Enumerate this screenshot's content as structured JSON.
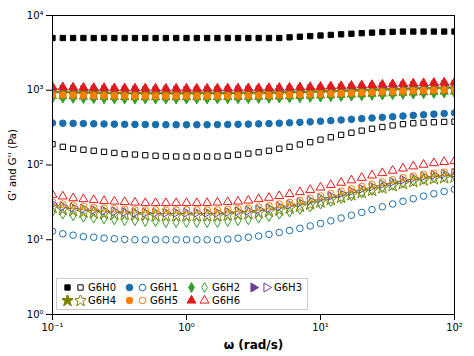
{
  "chart_data": {
    "type": "scatter",
    "xlabel": "ω (rad/s)",
    "ylabel": "G' and G'' (Pa)",
    "log": true,
    "xlim": [
      0.1,
      100
    ],
    "ylim": [
      1,
      10000
    ],
    "xticks": [
      {
        "value": 0.1,
        "label": "10⁻¹"
      },
      {
        "value": 1,
        "label": "10⁰"
      },
      {
        "value": 10,
        "label": "10¹"
      },
      {
        "value": 100,
        "label": "10²"
      }
    ],
    "yticks": [
      {
        "value": 1,
        "label": "10⁰"
      },
      {
        "value": 10,
        "label": "10¹"
      },
      {
        "value": 100,
        "label": "10²"
      },
      {
        "value": 1000,
        "label": "10³"
      },
      {
        "value": 10000,
        "label": "10⁴"
      }
    ],
    "legend": "lower left",
    "x": [
      0.1,
      0.1193777,
      0.1425103,
      0.1701254,
      0.2030918,
      0.2424462,
      0.2894266,
      0.3455107,
      0.4124626,
      0.4923883,
      0.5878016,
      0.7017038,
      0.8376776,
      1,
      1.193777,
      1.425103,
      1.701254,
      2.030918,
      2.424462,
      2.894266,
      3.455107,
      4.124626,
      4.923883,
      5.878016,
      7.017038,
      8.376776,
      10,
      11.93777,
      14.25103,
      17.01254,
      20.30918,
      24.24462,
      28.94266,
      34.55107,
      41.24626,
      49.23883,
      58.78016,
      70.17038,
      83.76776,
      100
    ],
    "series": [
      {
        "name": "G6H0",
        "color": "black",
        "marker": "square",
        "values": [
          5000,
          5000,
          5000,
          5000,
          5000,
          5000,
          5000,
          5000,
          5000,
          5000,
          5000,
          5000,
          5000,
          5000,
          5000,
          5000,
          5000,
          5000,
          5000,
          5000,
          5000,
          5000,
          5000,
          5100,
          5200,
          5300,
          5400,
          5500,
          5600,
          5700,
          5800,
          5900,
          6000,
          6050,
          6100,
          6100,
          6100,
          6100,
          6100,
          6100
        ]
      },
      {
        "name": "G6H0",
        "color": "black",
        "marker": "square-open",
        "values": [
          190,
          175,
          165,
          160,
          155,
          150,
          145,
          140,
          138,
          135,
          133,
          131,
          130,
          130,
          130,
          130,
          130,
          133,
          137,
          142,
          148,
          155,
          165,
          175,
          188,
          202,
          218,
          235,
          253,
          270,
          288,
          305,
          322,
          338,
          352,
          362,
          368,
          373,
          377,
          380
        ]
      },
      {
        "name": "G6H1",
        "color": "#1a6faf",
        "marker": "circle",
        "values": [
          365,
          362,
          360,
          358,
          356,
          354,
          352,
          350,
          349,
          348,
          347,
          346,
          346,
          346,
          346,
          346,
          347,
          348,
          350,
          352,
          355,
          358,
          362,
          367,
          372,
          378,
          385,
          392,
          400,
          408,
          417,
          425,
          434,
          443,
          452,
          461,
          470,
          479,
          488,
          497
        ]
      },
      {
        "name": "G6H1",
        "color": "#1a6faf",
        "marker": "circle-open",
        "values": [
          13,
          12,
          11.5,
          11,
          10.8,
          10.5,
          10.3,
          10.1,
          10,
          10,
          10,
          10,
          10,
          10,
          10,
          10,
          10,
          10.2,
          10.5,
          10.8,
          11.2,
          11.8,
          12.5,
          13.3,
          14.2,
          15.3,
          16.5,
          17.9,
          19.5,
          21.3,
          23.2,
          25.3,
          27.6,
          30.1,
          32.7,
          35.4,
          38.3,
          41.2,
          44.2,
          47.2
        ]
      },
      {
        "name": "G6H2",
        "color": "#33a02c",
        "marker": "diamond",
        "values": [
          790,
          785,
          780,
          775,
          772,
          769,
          767,
          765,
          764,
          763,
          762,
          762,
          762,
          762,
          763,
          764,
          765,
          767,
          769,
          772,
          776,
          780,
          785,
          790,
          796,
          803,
          810,
          818,
          826,
          835,
          844,
          853,
          863,
          873,
          882,
          891,
          900,
          908,
          916,
          924
        ]
      },
      {
        "name": "G6H2",
        "color": "#33a02c",
        "marker": "diamond-open",
        "values": [
          24,
          22,
          21,
          20,
          19.5,
          19,
          18.5,
          18,
          18,
          17.5,
          17.5,
          17,
          17,
          17,
          17,
          17,
          17,
          17.5,
          18,
          18.5,
          19.5,
          20.5,
          22,
          23.5,
          25.5,
          27.5,
          30,
          32.5,
          35.5,
          38.5,
          42,
          45.5,
          49.5,
          53.5,
          57.5,
          61,
          64.5,
          67.5,
          70,
          72
        ]
      },
      {
        "name": "G6H3",
        "color": "#6a3d9a",
        "marker": "triangle_right",
        "values": [
          1030,
          1022,
          1015,
          1009,
          1004,
          1000,
          997,
          994,
          992,
          990,
          989,
          988,
          988,
          988,
          988,
          989,
          990,
          992,
          994,
          997,
          1001,
          1006,
          1011,
          1017,
          1024,
          1032,
          1041,
          1050,
          1060,
          1071,
          1082,
          1094,
          1106,
          1118,
          1130,
          1142,
          1154,
          1165,
          1176,
          1186
        ]
      },
      {
        "name": "G6H3",
        "color": "#6a3d9a",
        "marker": "triangle_right-open",
        "values": [
          30,
          28,
          27,
          26,
          25,
          24.5,
          24,
          23.5,
          23,
          23,
          23,
          23,
          23,
          23,
          23,
          23,
          23,
          23.5,
          24,
          24.5,
          25.5,
          26.5,
          28,
          29.5,
          31.5,
          33.5,
          36,
          38.5,
          41.5,
          44.5,
          48,
          51.5,
          55.5,
          59.5,
          63.5,
          67,
          70.5,
          73.5,
          76,
          78
        ]
      },
      {
        "name": "G6H4",
        "color": "#808000",
        "marker": "star",
        "values": [
          910,
          903,
          897,
          891,
          887,
          883,
          880,
          877,
          875,
          874,
          873,
          872,
          872,
          872,
          872,
          873,
          874,
          875,
          877,
          880,
          884,
          888,
          893,
          899,
          906,
          913,
          921,
          929,
          938,
          947,
          957,
          967,
          977,
          987,
          997,
          1006,
          1015,
          1024,
          1032,
          1039
        ]
      },
      {
        "name": "G6H4",
        "color": "#808000",
        "marker": "star-open",
        "values": [
          27,
          25.5,
          24.5,
          23.5,
          23,
          22.5,
          22,
          22,
          21.5,
          21.5,
          21,
          21,
          21,
          21,
          21,
          21,
          21,
          21.5,
          22,
          22.5,
          23,
          24,
          25,
          26.5,
          28,
          30,
          32,
          34.5,
          37,
          40,
          43,
          46,
          49.5,
          53,
          56.5,
          60,
          63,
          65.5,
          67.5,
          69
        ]
      },
      {
        "name": "G6H5",
        "color": "#ff7f00",
        "marker": "circle",
        "values": [
          870,
          863,
          857,
          852,
          847,
          844,
          841,
          839,
          837,
          836,
          836,
          836,
          836,
          836,
          836,
          837,
          838,
          840,
          842,
          845,
          849,
          854,
          860,
          866,
          873,
          881,
          889,
          898,
          908,
          918,
          928,
          939,
          950,
          961,
          971,
          981,
          991,
          1000,
          1009,
          1017
        ]
      },
      {
        "name": "G6H5",
        "color": "#ff7f00",
        "marker": "circle-open",
        "values": [
          32,
          30,
          29,
          28,
          27,
          26.5,
          26,
          25.5,
          25,
          25,
          25,
          25,
          25,
          25,
          25,
          25,
          25,
          25.5,
          26,
          26.5,
          27.5,
          28.5,
          30,
          31.5,
          33.5,
          36,
          38.5,
          41.5,
          44.5,
          48,
          51.5,
          55.5,
          59.5,
          63.5,
          67.5,
          71,
          74.5,
          77.5,
          80,
          82
        ]
      },
      {
        "name": "G6H6",
        "color": "#e31a1c",
        "marker": "triangle",
        "values": [
          1110,
          1100,
          1092,
          1084,
          1078,
          1073,
          1068,
          1064,
          1061,
          1058,
          1056,
          1055,
          1054,
          1054,
          1054,
          1055,
          1056,
          1058,
          1061,
          1064,
          1069,
          1074,
          1081,
          1088,
          1097,
          1107,
          1117,
          1128,
          1140,
          1153,
          1166,
          1179,
          1193,
          1207,
          1221,
          1234,
          1247,
          1259,
          1271,
          1281
        ]
      },
      {
        "name": "G6H6",
        "color": "#e31a1c",
        "marker": "triangle-open",
        "values": [
          40,
          38,
          36,
          35,
          34,
          33,
          32.5,
          32,
          31.5,
          31,
          31,
          31,
          31,
          31,
          31,
          31,
          31.5,
          32,
          32.5,
          33.5,
          35,
          36.5,
          38.5,
          41,
          43.5,
          46.5,
          50,
          54,
          58,
          62.5,
          67.5,
          72.5,
          78,
          84,
          90,
          96,
          101,
          106,
          110,
          113
        ]
      }
    ]
  }
}
